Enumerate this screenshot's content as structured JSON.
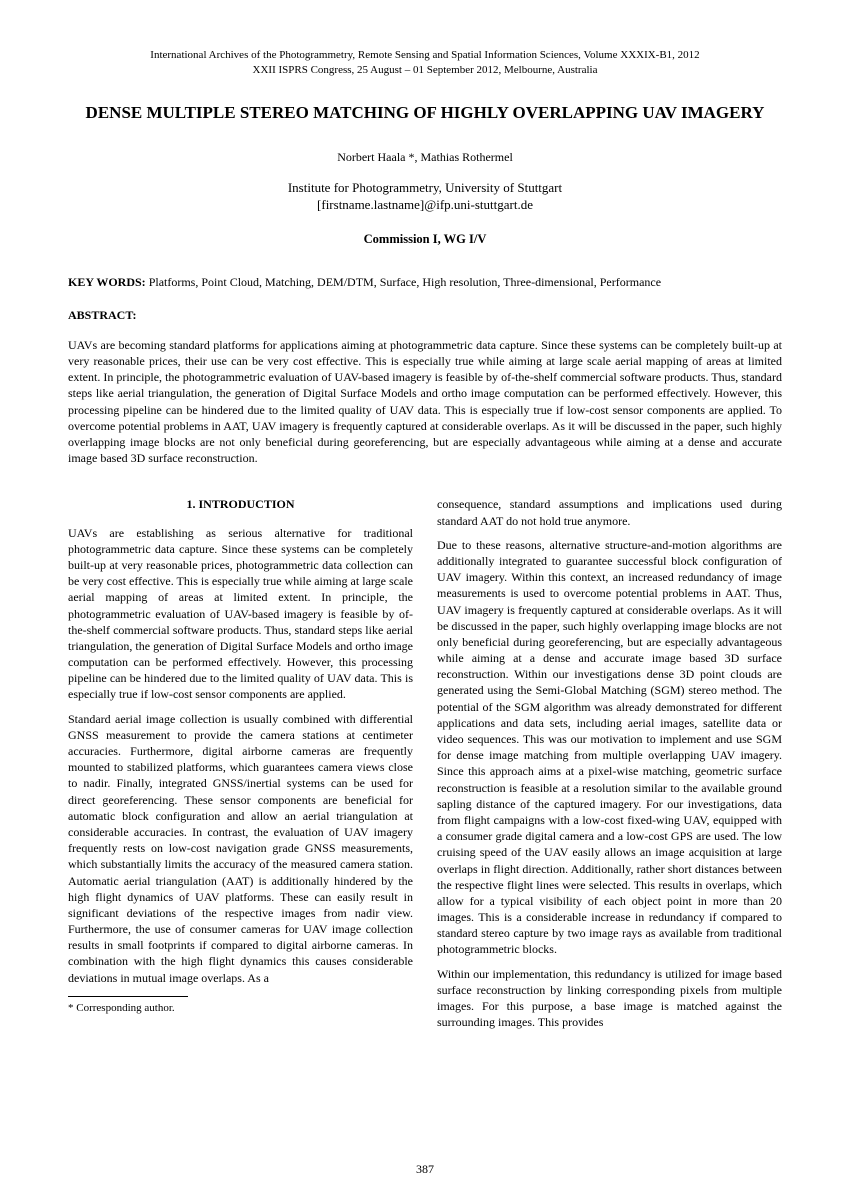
{
  "header": {
    "line1": "International Archives of the Photogrammetry, Remote Sensing and Spatial Information Sciences, Volume XXXIX-B1, 2012",
    "line2": "XXII ISPRS Congress, 25 August – 01 September 2012, Melbourne, Australia"
  },
  "title": "DENSE MULTIPLE STEREO MATCHING OF HIGHLY OVERLAPPING UAV IMAGERY",
  "authors": "Norbert Haala *, Mathias Rothermel",
  "affiliation": {
    "line1": "Institute for Photogrammetry, University of Stuttgart",
    "line2": "[firstname.lastname]@ifp.uni-stuttgart.de"
  },
  "commission": "Commission I, WG I/V",
  "keywords": {
    "label": "KEY WORDS:",
    "text": " Platforms, Point Cloud, Matching, DEM/DTM, Surface, High resolution, Three-dimensional, Performance"
  },
  "abstract": {
    "label": "ABSTRACT:",
    "text": "UAVs are becoming standard platforms for applications aiming at photogrammetric data capture. Since these systems can be completely built-up at very reasonable prices, their use can be very cost effective. This is especially true while aiming at large scale aerial mapping of areas at limited extent. In principle, the photogrammetric evaluation of UAV-based imagery is feasible by of-the-shelf commercial software products. Thus, standard steps like aerial triangulation, the generation of Digital Surface Models and ortho image computation can be performed effectively. However, this processing pipeline can be hindered due to the limited quality of UAV data. This is especially true if low-cost sensor components are applied. To overcome potential problems in AAT, UAV imagery is frequently captured at considerable overlaps. As it will be discussed in the paper, such highly overlapping image blocks are not only beneficial during georeferencing, but are especially advantageous while aiming at a dense and accurate image based 3D surface reconstruction."
  },
  "section1_heading": "1.    INTRODUCTION",
  "col_left": {
    "p1": "UAVs are establishing as serious alternative for traditional photogrammetric data capture. Since these systems can be completely built-up at very reasonable prices, photogrammetric data collection can be very cost effective. This is especially true while aiming at large scale aerial mapping of areas at limited extent. In principle, the photogrammetric evaluation of UAV-based imagery is feasible by of-the-shelf commercial software products. Thus, standard steps like aerial triangulation, the generation of Digital Surface Models and ortho image computation can be performed effectively. However, this processing pipeline can be hindered due to the limited quality of UAV data. This is especially true if low-cost sensor components are applied.",
    "p2": "Standard aerial image collection is usually combined with differential GNSS measurement to provide the camera stations at centimeter accuracies. Furthermore, digital airborne cameras are frequently mounted to stabilized platforms, which guarantees camera views close to nadir. Finally, integrated GNSS/inertial systems can be used for direct georeferencing. These sensor components are beneficial for automatic block configuration and allow an aerial triangulation at considerable accuracies. In contrast, the evaluation of UAV imagery frequently rests on low-cost navigation grade GNSS measurements, which substantially limits the accuracy of the measured camera station. Automatic aerial triangulation (AAT) is additionally hindered by the high flight dynamics of UAV platforms. These can easily result in significant deviations of the respective images from nadir view. Furthermore, the use of consumer cameras for UAV image collection results in small footprints if compared to digital airborne cameras. In combination with the high flight dynamics this causes considerable deviations in mutual image overlaps. As a"
  },
  "col_right": {
    "p1": "consequence, standard assumptions and implications used during standard AAT do not hold true anymore.",
    "p2": "Due to these reasons, alternative structure-and-motion algorithms are additionally integrated to guarantee successful block configuration of UAV imagery. Within this context, an increased redundancy of image measurements is used to overcome potential problems in AAT. Thus, UAV imagery is frequently captured at considerable overlaps. As it will be discussed in the paper, such highly overlapping image blocks are not only beneficial during georeferencing, but are especially advantageous while aiming at a dense and accurate image based 3D surface reconstruction. Within our investigations dense 3D point clouds are generated using the Semi-Global Matching (SGM) stereo method. The potential of the SGM algorithm was already demonstrated for different applications and data sets, including aerial images, satellite data or video sequences. This was our motivation to implement and use SGM for dense image matching from multiple overlapping UAV imagery. Since this approach aims at a pixel-wise matching, geometric surface reconstruction is feasible at a resolution similar to the available ground sapling distance of the captured imagery. For our investigations, data from flight campaigns with a low-cost fixed-wing UAV, equipped with a consumer grade digital camera and a low-cost GPS are used. The low cruising speed of the UAV easily allows an image acquisition at large overlaps in flight direction. Additionally, rather short distances between the respective flight lines were selected. This results in overlaps, which allow for a typical visibility of each object point in more than 20 images. This is a considerable increase in redundancy if compared to standard stereo capture by two image rays as available from traditional photogrammetric blocks.",
    "p3": "Within our implementation, this redundancy is utilized for image based surface reconstruction by linking corresponding pixels from multiple images. For this purpose, a base image is matched against the surrounding images. This provides"
  },
  "footnote": "*  Corresponding author.",
  "page_number": "387"
}
